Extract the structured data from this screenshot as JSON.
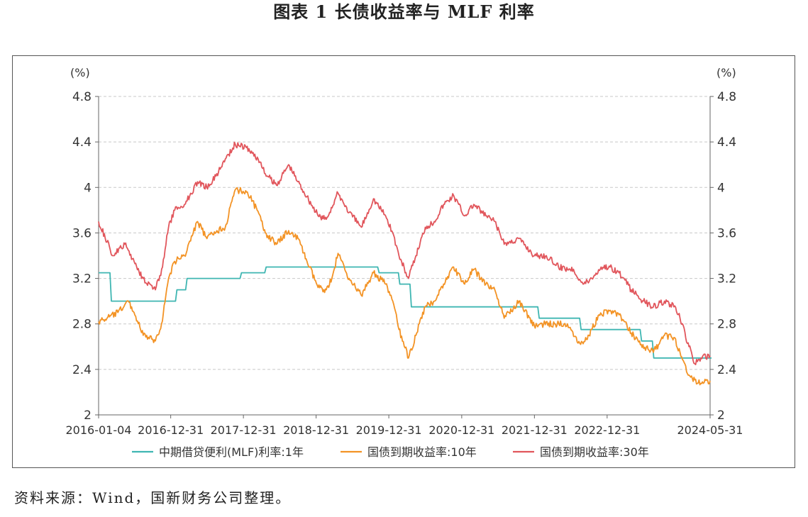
{
  "title": "图表 1  长债收益率与 MLF 利率",
  "source": "资料来源：Wind，国新财务公司整理。",
  "chart_data": {
    "type": "line",
    "title": "图表 1 长债收益率与 MLF 利率",
    "left_axis_unit": "(%)",
    "right_axis_unit": "(%)",
    "ylim": [
      2,
      4.8
    ],
    "yticks": [
      2,
      2.4,
      2.8,
      3.2,
      3.6,
      4,
      4.4,
      4.8
    ],
    "ytick_labels": [
      "2",
      "2.4",
      "2.8",
      "3.2",
      "3.6",
      "4",
      "4.4",
      "4.8"
    ],
    "x_range": [
      "2016-01-04",
      "2024-05-31"
    ],
    "xticks": [
      "2016-01-04",
      "2016-12-31",
      "2017-12-31",
      "2018-12-31",
      "2019-12-31",
      "2020-12-31",
      "2021-12-31",
      "2022-12-31",
      "2024-05-31"
    ],
    "grid": "horizontal dashed",
    "legend_position": "bottom",
    "series": [
      {
        "name": "中期借贷便利(MLF)利率:1年",
        "color": "#3fb6b2",
        "step": true,
        "points": [
          [
            "2016-01-04",
            3.25
          ],
          [
            "2016-03-01",
            3.0
          ],
          [
            "2017-01-24",
            3.1
          ],
          [
            "2017-03-16",
            3.2
          ],
          [
            "2017-12-14",
            3.25
          ],
          [
            "2018-04-17",
            3.3
          ],
          [
            "2019-11-05",
            3.25
          ],
          [
            "2020-02-17",
            3.15
          ],
          [
            "2020-04-15",
            2.95
          ],
          [
            "2022-01-17",
            2.85
          ],
          [
            "2022-08-15",
            2.75
          ],
          [
            "2023-06-15",
            2.65
          ],
          [
            "2023-08-15",
            2.5
          ],
          [
            "2024-05-31",
            2.5
          ]
        ]
      },
      {
        "name": "国债到期收益率:10年",
        "color": "#f39325",
        "step": false,
        "points": [
          [
            "2016-01-04",
            2.82
          ],
          [
            "2016-02-15",
            2.85
          ],
          [
            "2016-04-10",
            2.9
          ],
          [
            "2016-06-01",
            3.0
          ],
          [
            "2016-06-30",
            2.9
          ],
          [
            "2016-08-15",
            2.7
          ],
          [
            "2016-10-15",
            2.65
          ],
          [
            "2016-11-15",
            2.8
          ],
          [
            "2016-12-20",
            3.2
          ],
          [
            "2017-01-20",
            3.35
          ],
          [
            "2017-03-10",
            3.4
          ],
          [
            "2017-05-15",
            3.7
          ],
          [
            "2017-07-01",
            3.55
          ],
          [
            "2017-08-20",
            3.62
          ],
          [
            "2017-10-01",
            3.65
          ],
          [
            "2017-11-20",
            3.98
          ],
          [
            "2018-01-20",
            3.96
          ],
          [
            "2018-03-10",
            3.8
          ],
          [
            "2018-04-20",
            3.6
          ],
          [
            "2018-06-15",
            3.5
          ],
          [
            "2018-08-15",
            3.62
          ],
          [
            "2018-10-01",
            3.55
          ],
          [
            "2018-11-15",
            3.35
          ],
          [
            "2019-01-10",
            3.12
          ],
          [
            "2019-02-20",
            3.1
          ],
          [
            "2019-03-20",
            3.2
          ],
          [
            "2019-04-20",
            3.42
          ],
          [
            "2019-06-15",
            3.2
          ],
          [
            "2019-08-15",
            3.05
          ],
          [
            "2019-10-15",
            3.25
          ],
          [
            "2019-12-15",
            3.15
          ],
          [
            "2020-01-20",
            3.0
          ],
          [
            "2020-02-20",
            2.75
          ],
          [
            "2020-04-08",
            2.5
          ],
          [
            "2020-05-15",
            2.7
          ],
          [
            "2020-07-01",
            2.95
          ],
          [
            "2020-08-15",
            3.0
          ],
          [
            "2020-10-01",
            3.15
          ],
          [
            "2020-11-20",
            3.3
          ],
          [
            "2021-01-15",
            3.15
          ],
          [
            "2021-03-01",
            3.28
          ],
          [
            "2021-05-01",
            3.15
          ],
          [
            "2021-06-15",
            3.1
          ],
          [
            "2021-08-01",
            2.85
          ],
          [
            "2021-10-15",
            3.0
          ],
          [
            "2021-12-31",
            2.78
          ],
          [
            "2022-02-15",
            2.8
          ],
          [
            "2022-04-15",
            2.8
          ],
          [
            "2022-06-15",
            2.8
          ],
          [
            "2022-08-20",
            2.62
          ],
          [
            "2022-10-01",
            2.7
          ],
          [
            "2022-11-20",
            2.88
          ],
          [
            "2023-01-15",
            2.92
          ],
          [
            "2023-03-01",
            2.88
          ],
          [
            "2023-05-01",
            2.72
          ],
          [
            "2023-06-20",
            2.62
          ],
          [
            "2023-08-20",
            2.55
          ],
          [
            "2023-10-15",
            2.7
          ],
          [
            "2023-12-01",
            2.68
          ],
          [
            "2024-01-01",
            2.55
          ],
          [
            "2024-02-15",
            2.35
          ],
          [
            "2024-04-01",
            2.28
          ],
          [
            "2024-05-31",
            2.3
          ]
        ]
      },
      {
        "name": "国债到期收益率:30年",
        "color": "#e1565c",
        "step": false,
        "points": [
          [
            "2016-01-04",
            3.7
          ],
          [
            "2016-03-15",
            3.4
          ],
          [
            "2016-05-15",
            3.5
          ],
          [
            "2016-06-30",
            3.35
          ],
          [
            "2016-08-15",
            3.2
          ],
          [
            "2016-10-15",
            3.1
          ],
          [
            "2016-11-20",
            3.3
          ],
          [
            "2016-12-20",
            3.65
          ],
          [
            "2017-01-20",
            3.8
          ],
          [
            "2017-03-10",
            3.85
          ],
          [
            "2017-05-15",
            4.05
          ],
          [
            "2017-06-30",
            4.0
          ],
          [
            "2017-08-15",
            4.1
          ],
          [
            "2017-10-01",
            4.25
          ],
          [
            "2017-11-20",
            4.38
          ],
          [
            "2018-01-15",
            4.35
          ],
          [
            "2018-03-15",
            4.25
          ],
          [
            "2018-04-20",
            4.12
          ],
          [
            "2018-06-15",
            4.02
          ],
          [
            "2018-08-15",
            4.2
          ],
          [
            "2018-10-01",
            4.05
          ],
          [
            "2018-11-15",
            3.92
          ],
          [
            "2019-01-10",
            3.75
          ],
          [
            "2019-02-20",
            3.72
          ],
          [
            "2019-04-20",
            3.95
          ],
          [
            "2019-06-15",
            3.78
          ],
          [
            "2019-08-15",
            3.65
          ],
          [
            "2019-10-15",
            3.9
          ],
          [
            "2019-12-15",
            3.75
          ],
          [
            "2020-01-20",
            3.6
          ],
          [
            "2020-02-20",
            3.4
          ],
          [
            "2020-04-08",
            3.2
          ],
          [
            "2020-05-15",
            3.4
          ],
          [
            "2020-07-01",
            3.65
          ],
          [
            "2020-08-15",
            3.7
          ],
          [
            "2020-10-01",
            3.85
          ],
          [
            "2020-11-20",
            3.93
          ],
          [
            "2021-01-15",
            3.75
          ],
          [
            "2021-03-01",
            3.85
          ],
          [
            "2021-05-01",
            3.75
          ],
          [
            "2021-06-15",
            3.7
          ],
          [
            "2021-08-01",
            3.5
          ],
          [
            "2021-10-15",
            3.55
          ],
          [
            "2021-12-31",
            3.4
          ],
          [
            "2022-03-01",
            3.4
          ],
          [
            "2022-05-01",
            3.3
          ],
          [
            "2022-07-15",
            3.28
          ],
          [
            "2022-09-01",
            3.15
          ],
          [
            "2022-10-15",
            3.2
          ],
          [
            "2022-12-01",
            3.3
          ],
          [
            "2023-01-15",
            3.3
          ],
          [
            "2023-03-01",
            3.25
          ],
          [
            "2023-05-01",
            3.1
          ],
          [
            "2023-07-01",
            3.0
          ],
          [
            "2023-08-20",
            2.95
          ],
          [
            "2023-10-15",
            3.0
          ],
          [
            "2023-12-01",
            2.95
          ],
          [
            "2024-01-01",
            2.85
          ],
          [
            "2024-02-15",
            2.6
          ],
          [
            "2024-03-15",
            2.45
          ],
          [
            "2024-04-15",
            2.5
          ],
          [
            "2024-05-31",
            2.52
          ]
        ]
      }
    ]
  }
}
